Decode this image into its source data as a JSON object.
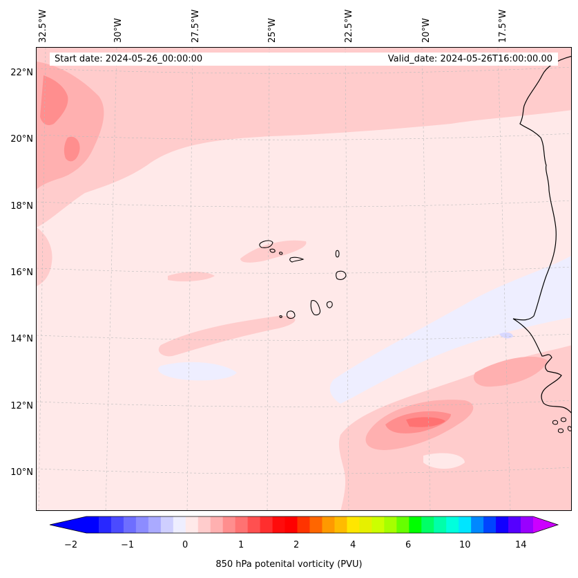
{
  "map": {
    "start_date_text": "Start date: 2024-05-26_00:00:00",
    "valid_date_text": "Valid_date: 2024-05-26T16:00:00.00",
    "longitude_labels": [
      "32.5°W",
      "30°W",
      "27.5°W",
      "25°W",
      "22.5°W",
      "20°W",
      "17.5°W"
    ],
    "latitude_labels": [
      "22°N",
      "20°N",
      "18°N",
      "16°N",
      "14°N",
      "12°N",
      "10°N"
    ],
    "field": "850 hPa potenital vorticity (PVU)",
    "background_level_color": "#ffe9e9"
  },
  "colorbar": {
    "label": "850 hPa potenital vorticity (PVU)",
    "tick_labels": [
      "−2",
      "−1",
      "0",
      "1",
      "2",
      "4",
      "6",
      "10",
      "14"
    ],
    "colors": [
      "#0000ff",
      "#2828ff",
      "#4b4bff",
      "#6e6eff",
      "#8c8cff",
      "#aaaaff",
      "#cfcfff",
      "#eeeeff",
      "#ffe9e9",
      "#ffcccc",
      "#ffb0b0",
      "#ff8e8e",
      "#ff7272",
      "#ff5050",
      "#ff2e2e",
      "#ff0c0c",
      "#ff0000",
      "#ff3300",
      "#ff6600",
      "#ff9900",
      "#ffbb00",
      "#ffe600",
      "#e6f000",
      "#ccff00",
      "#a6ff00",
      "#66ff00",
      "#00ff00",
      "#00ff66",
      "#00ffaa",
      "#00ffdd",
      "#00e5ff",
      "#0088ff",
      "#0044ff",
      "#1100ff",
      "#5500ff",
      "#9900ff"
    ],
    "extend_min_color": "#0000ff",
    "extend_max_color": "#cc00ff"
  }
}
